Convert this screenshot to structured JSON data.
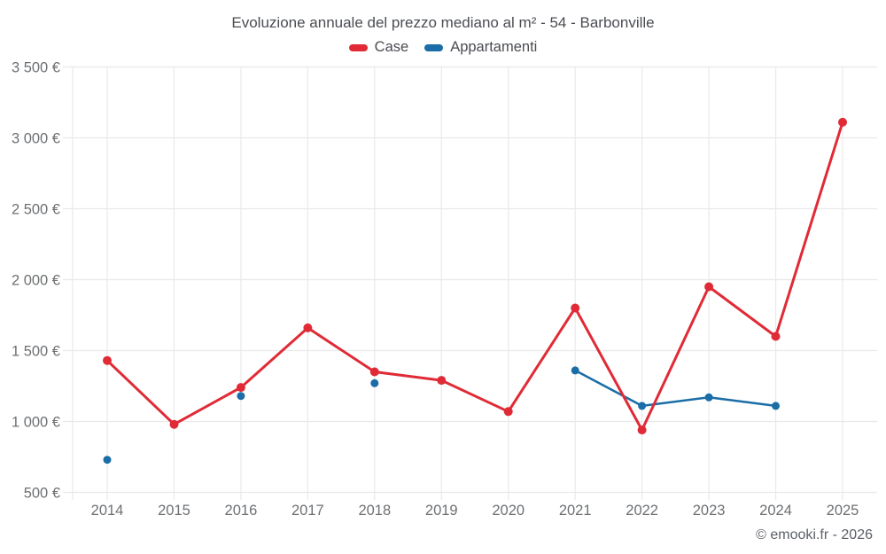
{
  "chart_data": {
    "type": "line",
    "title": "Evoluzione annuale del prezzo mediano al m² - 54 - Barbonville",
    "footer": "© emooki.fr - 2026",
    "categories": [
      "2014",
      "2015",
      "2016",
      "2017",
      "2018",
      "2019",
      "2020",
      "2021",
      "2022",
      "2023",
      "2024",
      "2025"
    ],
    "series": [
      {
        "name": "Appartamenti",
        "color": "#1a6da6",
        "values": [
          730,
          null,
          1180,
          null,
          1270,
          null,
          null,
          1360,
          1110,
          1170,
          1110,
          null
        ]
      },
      {
        "name": "Case",
        "color": "#e02b36",
        "values": [
          1430,
          980,
          1240,
          1660,
          1350,
          1290,
          1070,
          1800,
          940,
          1950,
          1600,
          3110
        ]
      }
    ],
    "legend_order": [
      "Case",
      "Appartamenti"
    ],
    "legend_position": "top",
    "grid": true,
    "ylim": [
      500,
      3500
    ],
    "ytick_step": 500,
    "ytick_suffix": " €",
    "ytick_labels": [
      "500 €",
      "1 000 €",
      "1 500 €",
      "2 000 €",
      "2 500 €",
      "3 000 €",
      "3 500 €"
    ],
    "colors": {
      "gridline": "#e9e9e9",
      "tick_label": "#6d7073",
      "title": "#4a4d52",
      "footer": "#5c6066",
      "background": "#ffffff"
    }
  }
}
